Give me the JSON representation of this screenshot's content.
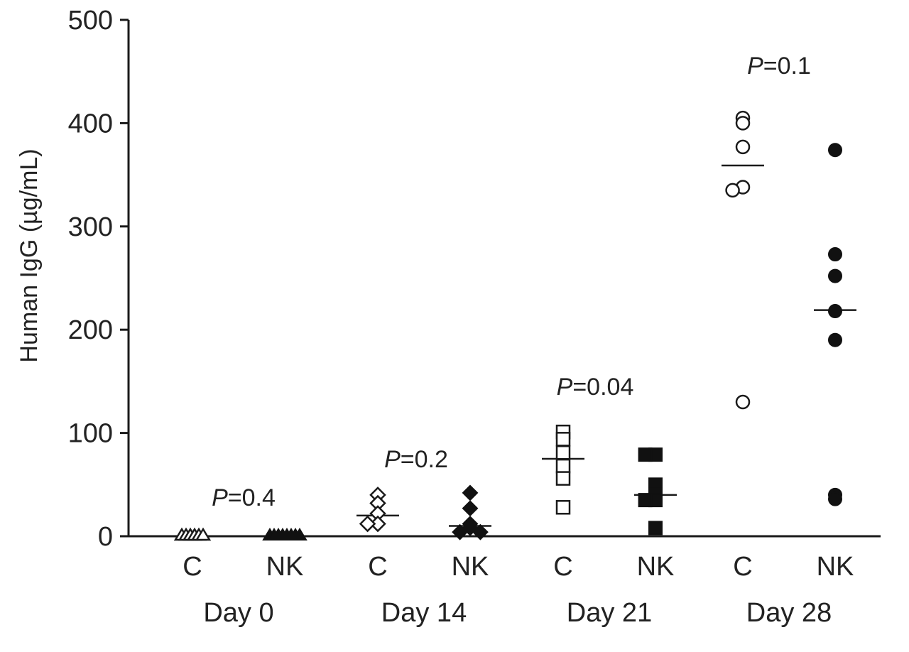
{
  "chart_data": {
    "type": "scatter",
    "title": "",
    "ylabel": "Human IgG (µg/mL)",
    "xlabel": "",
    "ylim": [
      0,
      500
    ],
    "yticks": [
      "0",
      "100",
      "200",
      "300",
      "400",
      "500"
    ],
    "grid": false,
    "days": [
      {
        "label": "Day 0",
        "pvalue": "=0.4",
        "groups": [
          {
            "label": "C",
            "marker": "triangle",
            "filled": false,
            "median": 0,
            "values": [
              0,
              0,
              0,
              0,
              0,
              0
            ]
          },
          {
            "label": "NK",
            "marker": "triangle",
            "filled": true,
            "median": 0,
            "values": [
              0,
              0,
              0,
              0,
              0,
              0,
              0,
              0
            ]
          }
        ]
      },
      {
        "label": "Day 14",
        "pvalue": "=0.2",
        "groups": [
          {
            "label": "C",
            "marker": "diamond",
            "filled": false,
            "median": 20,
            "values": [
              40,
              32,
              22,
              12,
              12
            ]
          },
          {
            "label": "NK",
            "marker": "diamond",
            "filled": true,
            "median": 10,
            "values": [
              42,
              27,
              12,
              8,
              4,
              4
            ]
          }
        ]
      },
      {
        "label": "Day 21",
        "pvalue": "=0.04",
        "groups": [
          {
            "label": "C",
            "marker": "square",
            "filled": false,
            "median": 75,
            "values": [
              101,
              94,
              81,
              68,
              56,
              28
            ]
          },
          {
            "label": "NK",
            "marker": "square",
            "filled": true,
            "median": 40,
            "values": [
              79,
              79,
              50,
              40,
              35,
              35,
              8
            ]
          }
        ]
      },
      {
        "label": "Day 28",
        "pvalue": "=0.1",
        "groups": [
          {
            "label": "C",
            "marker": "circle",
            "filled": false,
            "median": 359,
            "values": [
              405,
              400,
              377,
              338,
              335,
              130
            ]
          },
          {
            "label": "NK",
            "marker": "circle",
            "filled": true,
            "median": 219,
            "values": [
              374,
              273,
              252,
              218,
              190,
              40,
              36
            ]
          }
        ]
      }
    ],
    "p_label": "P"
  }
}
